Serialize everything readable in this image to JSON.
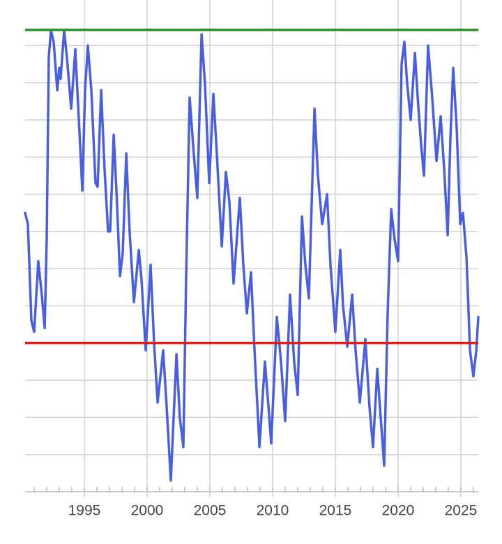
{
  "chart_data": {
    "type": "line",
    "x": [
      1990.28,
      1990.5,
      1990.78,
      1991.0,
      1991.33,
      1991.61,
      1991.84,
      1992.0,
      1992.17,
      1992.34,
      1992.56,
      1992.84,
      1993.0,
      1993.11,
      1993.39,
      1993.61,
      1993.95,
      1994.28,
      1994.61,
      1994.84,
      1995.06,
      1995.28,
      1995.56,
      1995.89,
      1996.06,
      1996.34,
      1996.61,
      1996.89,
      1997.06,
      1997.34,
      1997.56,
      1997.84,
      1998.06,
      1998.34,
      1998.61,
      1998.95,
      1999.34,
      1999.56,
      1999.89,
      2000.28,
      2000.56,
      2000.84,
      2001.28,
      2001.56,
      2001.89,
      2002.34,
      2002.61,
      2002.89,
      2003.11,
      2003.39,
      2003.72,
      2004.0,
      2004.34,
      2004.61,
      2004.95,
      2005.28,
      2005.56,
      2005.95,
      2006.28,
      2006.56,
      2006.89,
      2007.39,
      2007.67,
      2007.95,
      2008.28,
      2008.56,
      2008.95,
      2009.39,
      2009.67,
      2009.89,
      2010.34,
      2010.67,
      2011.0,
      2011.39,
      2011.72,
      2012.0,
      2012.34,
      2012.61,
      2012.89,
      2013.34,
      2013.61,
      2013.95,
      2014.34,
      2014.61,
      2015.0,
      2015.39,
      2015.61,
      2015.95,
      2016.34,
      2016.61,
      2016.95,
      2017.39,
      2017.72,
      2018.0,
      2018.34,
      2018.61,
      2018.89,
      2019.17,
      2019.45,
      2019.72,
      2020.0,
      2020.28,
      2020.5,
      2020.72,
      2021.0,
      2021.34,
      2021.56,
      2021.84,
      2022.06,
      2022.39,
      2022.72,
      2023.06,
      2023.39,
      2023.67,
      2023.95,
      2024.17,
      2024.39,
      2024.67,
      2024.95,
      2025.17,
      2025.45,
      2025.73,
      2026.0,
      2026.23,
      2026.39
    ],
    "series": [
      {
        "color": "#4a5fe0",
        "values": [
          7.5,
          7.2,
          4.6,
          4.3,
          6.2,
          5.3,
          4.4,
          6.8,
          11.7,
          12.4,
          12.1,
          10.8,
          11.4,
          11.1,
          12.4,
          11.7,
          10.3,
          11.9,
          9.7,
          8.1,
          10.8,
          12.0,
          10.8,
          8.3,
          8.2,
          10.8,
          8.7,
          7.0,
          7.0,
          9.6,
          8.1,
          5.8,
          6.4,
          9.1,
          7.0,
          5.1,
          6.5,
          5.7,
          3.8,
          6.1,
          4.0,
          2.4,
          3.8,
          2.3,
          0.3,
          3.7,
          2.0,
          1.2,
          5.7,
          10.6,
          9.1,
          7.9,
          12.3,
          11.0,
          8.3,
          10.7,
          9.1,
          6.6,
          8.6,
          7.8,
          5.6,
          7.9,
          6.1,
          4.8,
          5.9,
          3.8,
          1.2,
          3.5,
          2.3,
          1.3,
          4.7,
          3.5,
          1.9,
          5.3,
          3.5,
          2.6,
          7.4,
          6.1,
          5.2,
          10.3,
          8.5,
          7.2,
          8.0,
          6.1,
          4.3,
          6.5,
          5.0,
          3.9,
          5.3,
          3.8,
          2.4,
          4.1,
          2.3,
          1.2,
          3.3,
          2.0,
          0.7,
          4.8,
          7.6,
          6.8,
          6.2,
          11.5,
          12.1,
          11.0,
          10.0,
          11.8,
          10.6,
          9.3,
          8.5,
          12.0,
          10.6,
          8.9,
          10.1,
          8.7,
          6.9,
          9.5,
          11.4,
          9.8,
          7.2,
          7.5,
          6.3,
          3.8,
          3.1,
          3.8,
          4.7
        ]
      }
    ],
    "reference_lines": [
      {
        "value": 12.42,
        "color": "#2e8b2e"
      },
      {
        "value": 4.0,
        "color": "#d42020"
      }
    ],
    "xlim": [
      1990.28,
      2026.39
    ],
    "xticks": [
      1995,
      2000,
      2005,
      2010,
      2015,
      2020,
      2025
    ],
    "xminor": [
      1991,
      1992,
      1993,
      1994,
      1995,
      1996,
      1997,
      1998,
      1999,
      2000,
      2001,
      2002,
      2003,
      2004,
      2005,
      2006,
      2007,
      2008,
      2009,
      2010,
      2011,
      2012,
      2013,
      2014,
      2015,
      2016,
      2017,
      2018,
      2019,
      2020,
      2021,
      2022,
      2023,
      2024,
      2025,
      2026
    ],
    "ylim": [
      0,
      13
    ],
    "ygrid": [
      1,
      2,
      3,
      4,
      5,
      6,
      7,
      8,
      9,
      10,
      11,
      12
    ],
    "grid": true
  }
}
